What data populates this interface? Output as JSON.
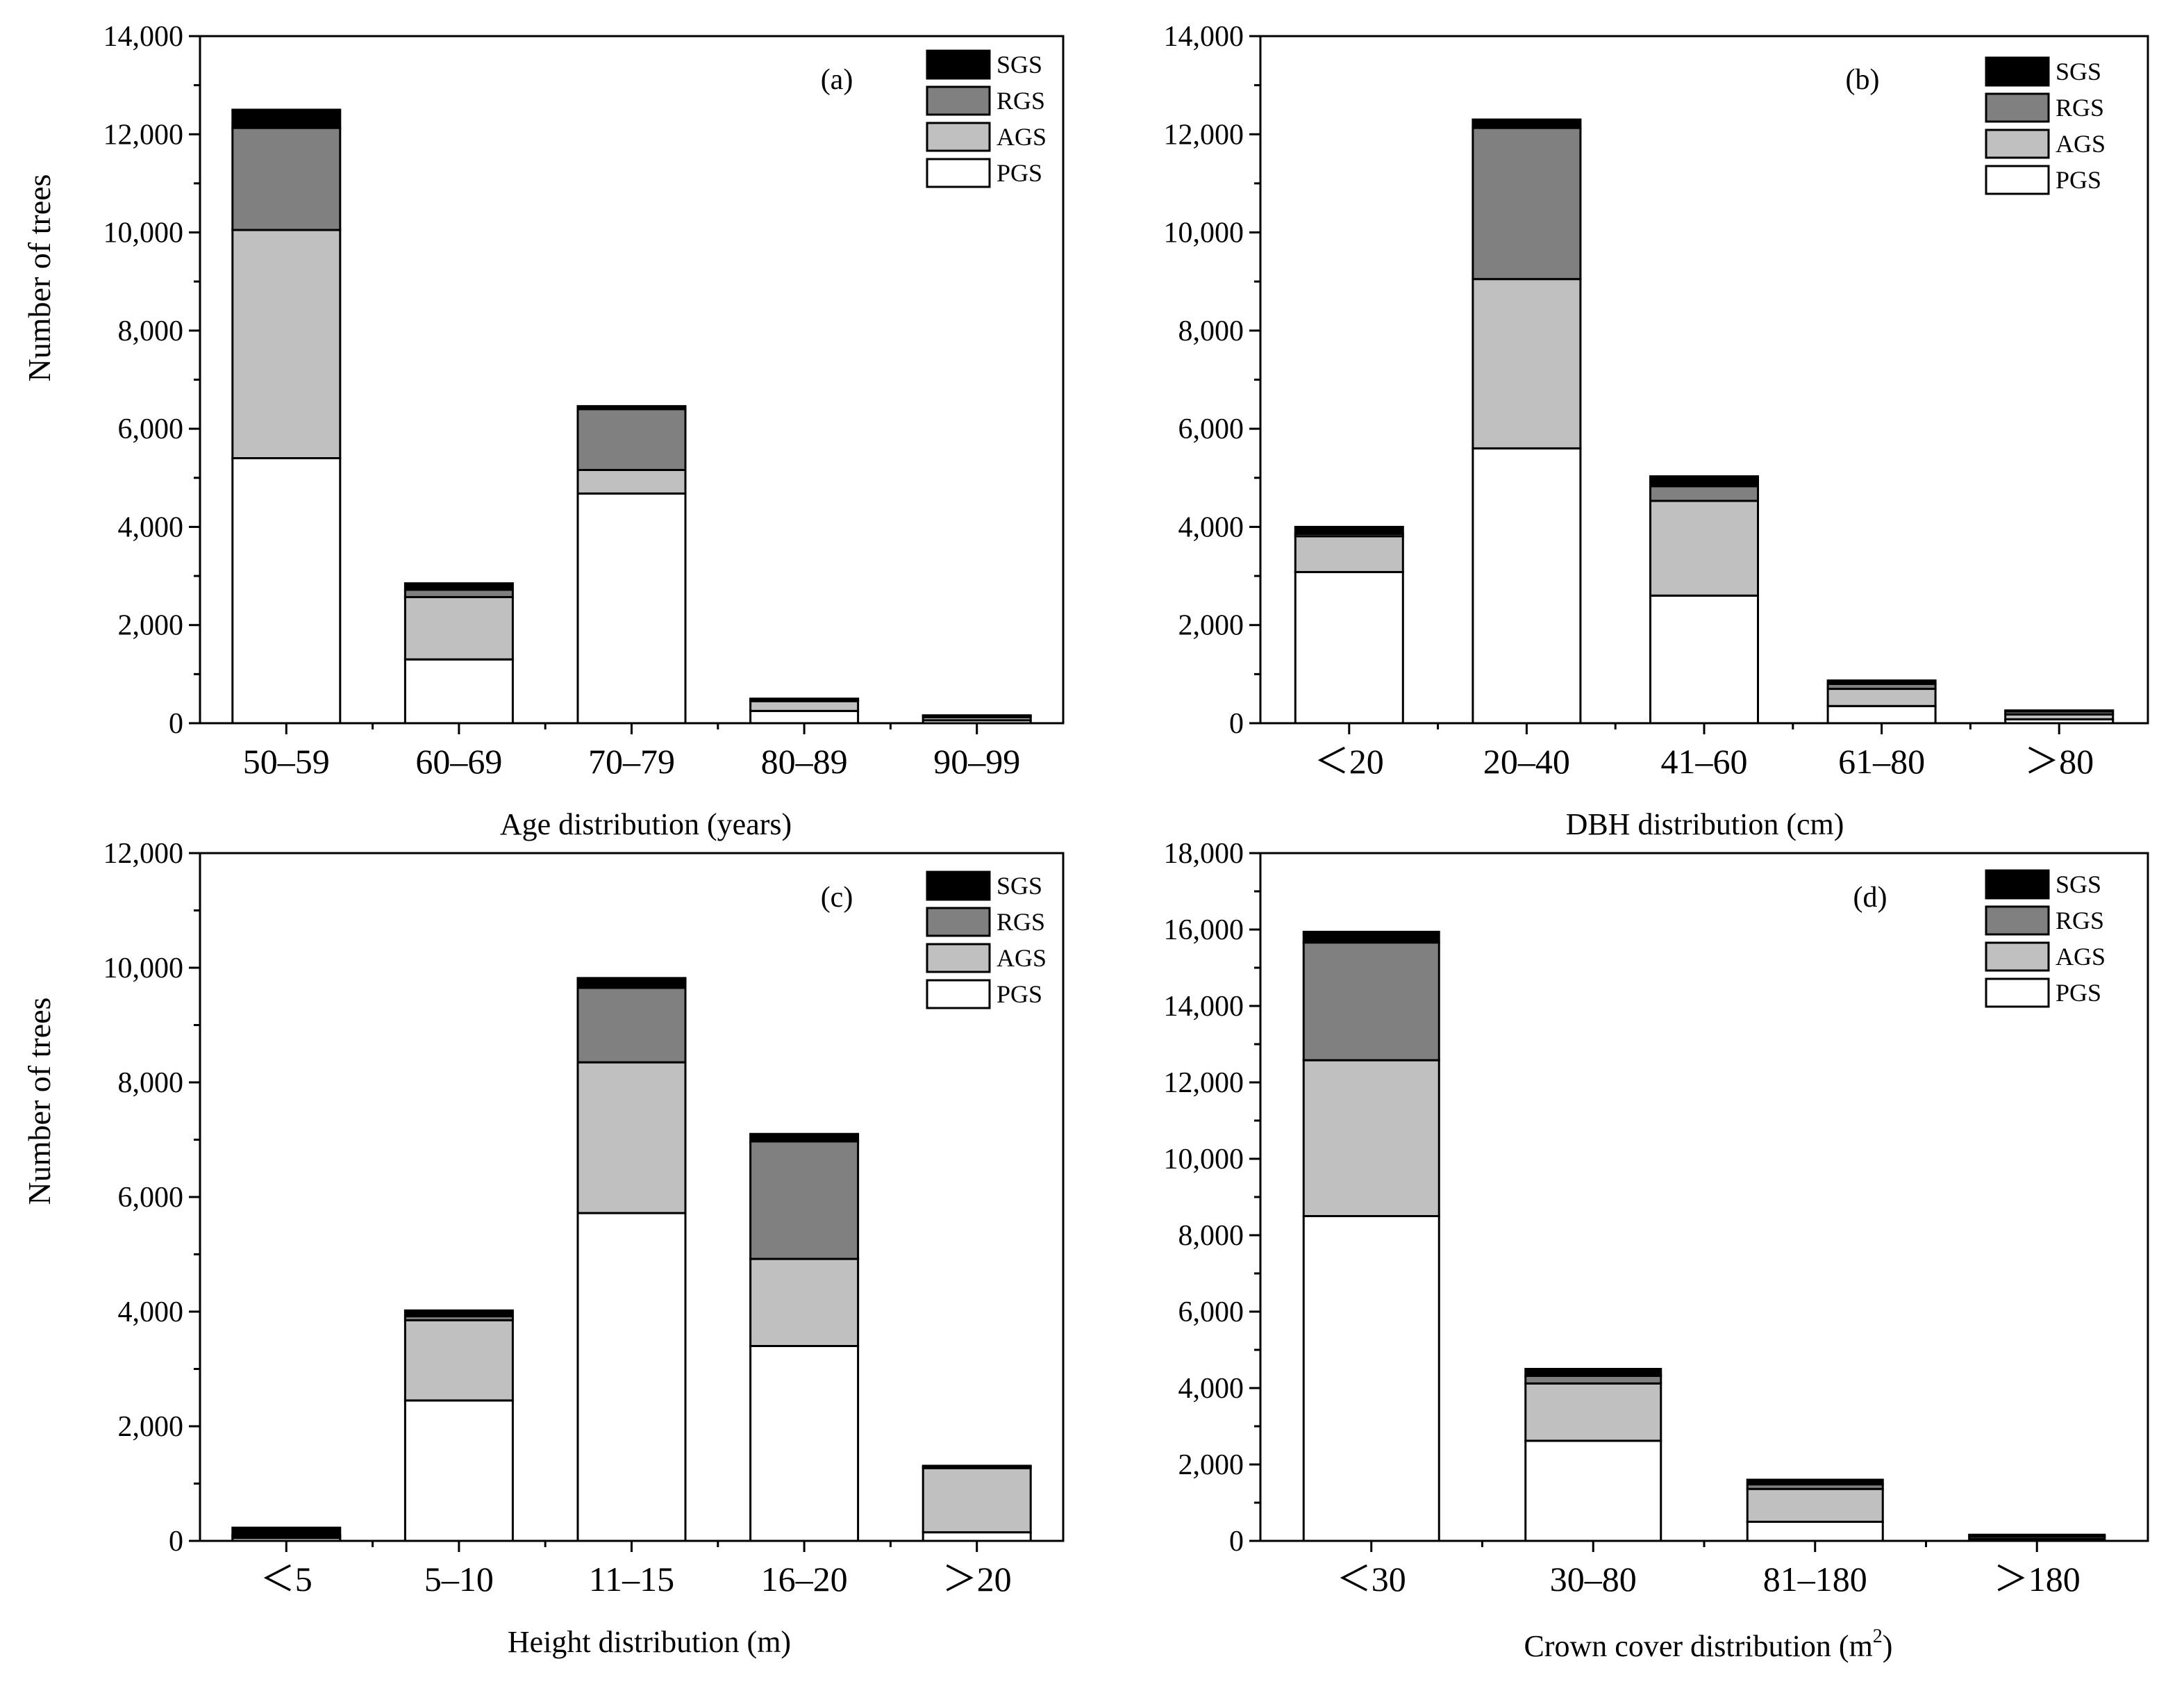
{
  "figure": {
    "colors": {
      "PGS": "#ffffff",
      "AGS": "#c0c0c0",
      "RGS": "#808080",
      "SGS": "#000000",
      "stroke": "#000000"
    },
    "legend_order": [
      "SGS",
      "RGS",
      "AGS",
      "PGS"
    ],
    "y_axis_label_left": "Number of trees"
  },
  "chart_data": [
    {
      "id": "a",
      "type": "bar",
      "stacked": true,
      "panel_label": "(a)",
      "xlabel": "Age distribution (years)",
      "ylabel": "Number of trees",
      "categories": [
        "50–59",
        "60–69",
        "70–79",
        "80–89",
        "90–99"
      ],
      "ylim": [
        0,
        14000
      ],
      "yticks": [
        0,
        2000,
        4000,
        6000,
        8000,
        10000,
        12000,
        14000
      ],
      "ytick_labels": [
        "0",
        "2,000",
        "4,000",
        "6,000",
        "8,000",
        "10,000",
        "12,000",
        "14,000"
      ],
      "legend_position": "top-right",
      "series": [
        {
          "name": "PGS",
          "values": [
            5400,
            1300,
            4680,
            250,
            60
          ]
        },
        {
          "name": "AGS",
          "values": [
            4650,
            1270,
            480,
            200,
            60
          ]
        },
        {
          "name": "RGS",
          "values": [
            2080,
            150,
            1240,
            30,
            30
          ]
        },
        {
          "name": "SGS",
          "values": [
            370,
            130,
            60,
            20,
            10
          ]
        }
      ]
    },
    {
      "id": "b",
      "type": "bar",
      "stacked": true,
      "panel_label": "(b)",
      "xlabel": "DBH distribution (cm)",
      "ylabel": "",
      "categories": [
        "＜20",
        "20–40",
        "41–60",
        "61–80",
        "＞80"
      ],
      "ylim": [
        0,
        14000
      ],
      "yticks": [
        0,
        2000,
        4000,
        6000,
        8000,
        10000,
        12000,
        14000
      ],
      "ytick_labels": [
        "0",
        "2,000",
        "4,000",
        "6,000",
        "8,000",
        "10,000",
        "12,000",
        "14,000"
      ],
      "legend_position": "top-right",
      "series": [
        {
          "name": "PGS",
          "values": [
            3080,
            5600,
            2600,
            350,
            80
          ]
        },
        {
          "name": "AGS",
          "values": [
            730,
            3450,
            1930,
            350,
            100
          ]
        },
        {
          "name": "RGS",
          "values": [
            50,
            3080,
            300,
            100,
            60
          ]
        },
        {
          "name": "SGS",
          "values": [
            140,
            170,
            200,
            70,
            20
          ]
        }
      ]
    },
    {
      "id": "c",
      "type": "bar",
      "stacked": true,
      "panel_label": "(c)",
      "xlabel": "Height distribution (m)",
      "ylabel": "Number of trees",
      "categories": [
        "＜5",
        "5–10",
        "11–15",
        "16–20",
        "＞20"
      ],
      "ylim": [
        0,
        12000
      ],
      "yticks": [
        0,
        2000,
        4000,
        6000,
        8000,
        10000,
        12000
      ],
      "ytick_labels": [
        "0",
        "2,000",
        "4,000",
        "6,000",
        "8,000",
        "10,000",
        "12,000"
      ],
      "legend_position": "top-right",
      "series": [
        {
          "name": "PGS",
          "values": [
            50,
            2450,
            5720,
            3400,
            150
          ]
        },
        {
          "name": "AGS",
          "values": [
            30,
            1400,
            2630,
            1520,
            1120
          ]
        },
        {
          "name": "RGS",
          "values": [
            20,
            70,
            1300,
            2050,
            20
          ]
        },
        {
          "name": "SGS",
          "values": [
            130,
            100,
            170,
            130,
            20
          ]
        }
      ]
    },
    {
      "id": "d",
      "type": "bar",
      "stacked": true,
      "panel_label": "(d)",
      "xlabel": "Crown cover distribution (m",
      "xlabel_superscript": "2",
      "xlabel_suffix": ")",
      "ylabel": "",
      "categories": [
        "＜30",
        "30–80",
        "81–180",
        "＞180"
      ],
      "ylim": [
        0,
        18000
      ],
      "yticks": [
        0,
        2000,
        4000,
        6000,
        8000,
        10000,
        12000,
        14000,
        16000,
        18000
      ],
      "ytick_labels": [
        "0",
        "2,000",
        "4,000",
        "6,000",
        "8,000",
        "10,000",
        "12,000",
        "14,000",
        "16,000",
        "18,000"
      ],
      "legend_position": "top-right",
      "series": [
        {
          "name": "PGS",
          "values": [
            8500,
            2620,
            500,
            50
          ]
        },
        {
          "name": "AGS",
          "values": [
            4080,
            1500,
            860,
            60
          ]
        },
        {
          "name": "RGS",
          "values": [
            3080,
            200,
            120,
            30
          ]
        },
        {
          "name": "SGS",
          "values": [
            280,
            180,
            120,
            20
          ]
        }
      ]
    }
  ]
}
